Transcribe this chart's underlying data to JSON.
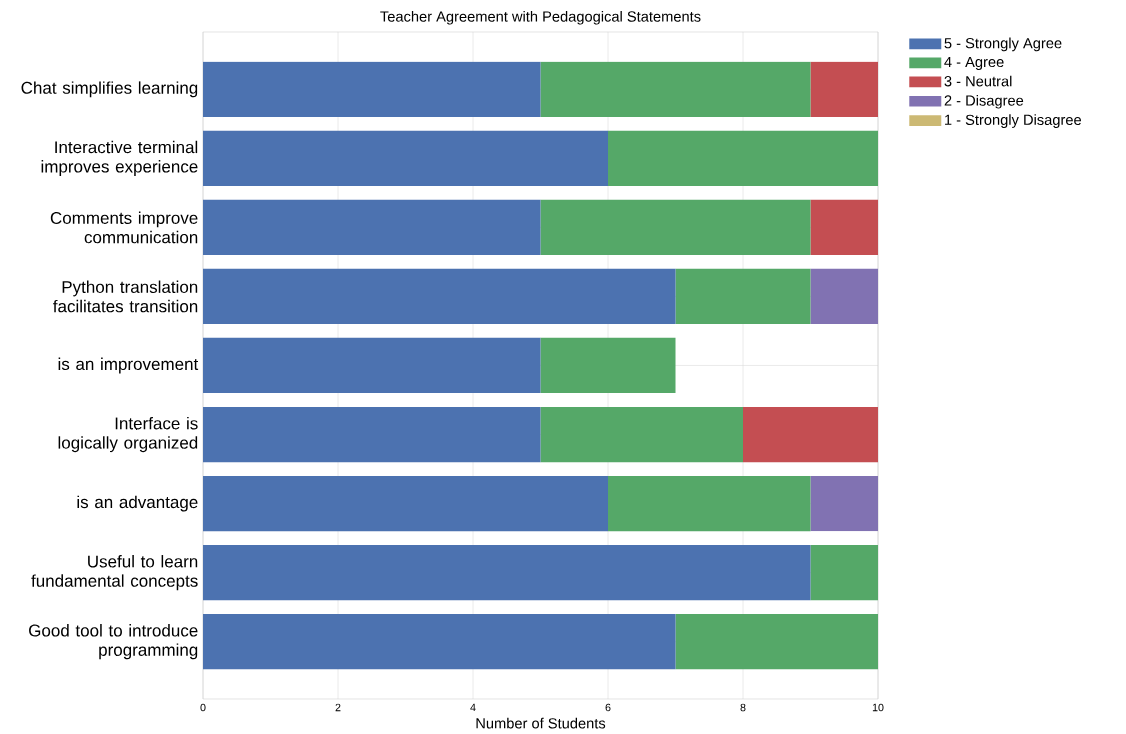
{
  "chart_data": {
    "type": "bar",
    "orientation": "horizontal",
    "stacked": true,
    "title": "Teacher Agreement with Pedagogical Statements",
    "xlabel": "Number of Students",
    "categories": [
      "Chat simplifies learning",
      "Interactive terminal improves experience",
      "Comments improve communication",
      "Python translation facilitates transition",
      "is an improvement",
      "Interface is logically organized",
      "is an advantage",
      "Useful to learn fundamental concepts",
      "Good tool to introduce programming"
    ],
    "series": [
      {
        "name": "5 - Strongly Agree",
        "color": "#4c72b0",
        "values": [
          5,
          6,
          5,
          7,
          5,
          5,
          6,
          9,
          7
        ]
      },
      {
        "name": "4 - Agree",
        "color": "#55a868",
        "values": [
          4,
          4,
          4,
          2,
          2,
          3,
          3,
          1,
          3
        ]
      },
      {
        "name": "3 - Neutral",
        "color": "#c44e52",
        "values": [
          1,
          0,
          1,
          0,
          0,
          2,
          0,
          0,
          0
        ]
      },
      {
        "name": "2 - Disagree",
        "color": "#8172b2",
        "values": [
          0,
          0,
          0,
          1,
          0,
          0,
          1,
          0,
          0
        ]
      },
      {
        "name": "1 - Strongly Disagree",
        "color": "#ccb974",
        "values": [
          0,
          0,
          0,
          0,
          0,
          0,
          0,
          0,
          0
        ]
      }
    ],
    "xlim": [
      0,
      10
    ],
    "xticks": [
      0,
      2,
      4,
      6,
      8,
      10
    ],
    "grid": true,
    "legend": "top right"
  }
}
